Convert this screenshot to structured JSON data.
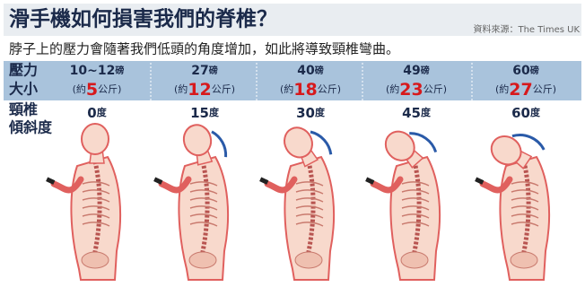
{
  "header": {
    "title": "滑手機如何損害我們的脊椎？",
    "source": "資料來源：The Times UK",
    "subtitle": "脖子上的壓力會隨著我們低頭的角度增加，如此將導致頸椎彎曲。"
  },
  "row_labels": {
    "pressure": [
      "壓力",
      "大小"
    ],
    "tilt": [
      "頸椎",
      "傾斜度"
    ]
  },
  "units": {
    "lb": "磅",
    "approx_open": "(約",
    "kg": "公斤)",
    "deg": "度"
  },
  "columns": [
    {
      "pounds": "10~12",
      "kg": "5",
      "angle": "0"
    },
    {
      "pounds": "27",
      "kg": "12",
      "angle": "15"
    },
    {
      "pounds": "40",
      "kg": "18",
      "angle": "30"
    },
    {
      "pounds": "49",
      "kg": "23",
      "angle": "45"
    },
    {
      "pounds": "60",
      "kg": "27",
      "angle": "60"
    }
  ]
}
